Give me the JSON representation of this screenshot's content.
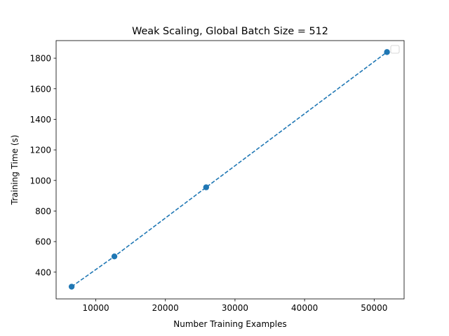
{
  "chart_data": {
    "type": "line",
    "title": "Weak Scaling, Global Batch Size = 512",
    "xlabel": "Number Training Examples",
    "ylabel": "Training Time (s)",
    "xlim": [
      4300,
      54300
    ],
    "ylim": [
      225,
      1915
    ],
    "xticks": [
      10000,
      20000,
      30000,
      40000,
      50000
    ],
    "yticks": [
      400,
      600,
      800,
      1000,
      1200,
      1400,
      1600,
      1800
    ],
    "series": [
      {
        "x": [
          6528,
          12672,
          25856,
          51840
        ],
        "y": [
          305,
          503,
          955,
          1840
        ],
        "line_style": "dashed",
        "marker": "circle",
        "color": "#1f77b4"
      }
    ],
    "legend": {
      "placement": "top-right",
      "entries": []
    },
    "grid": false
  }
}
